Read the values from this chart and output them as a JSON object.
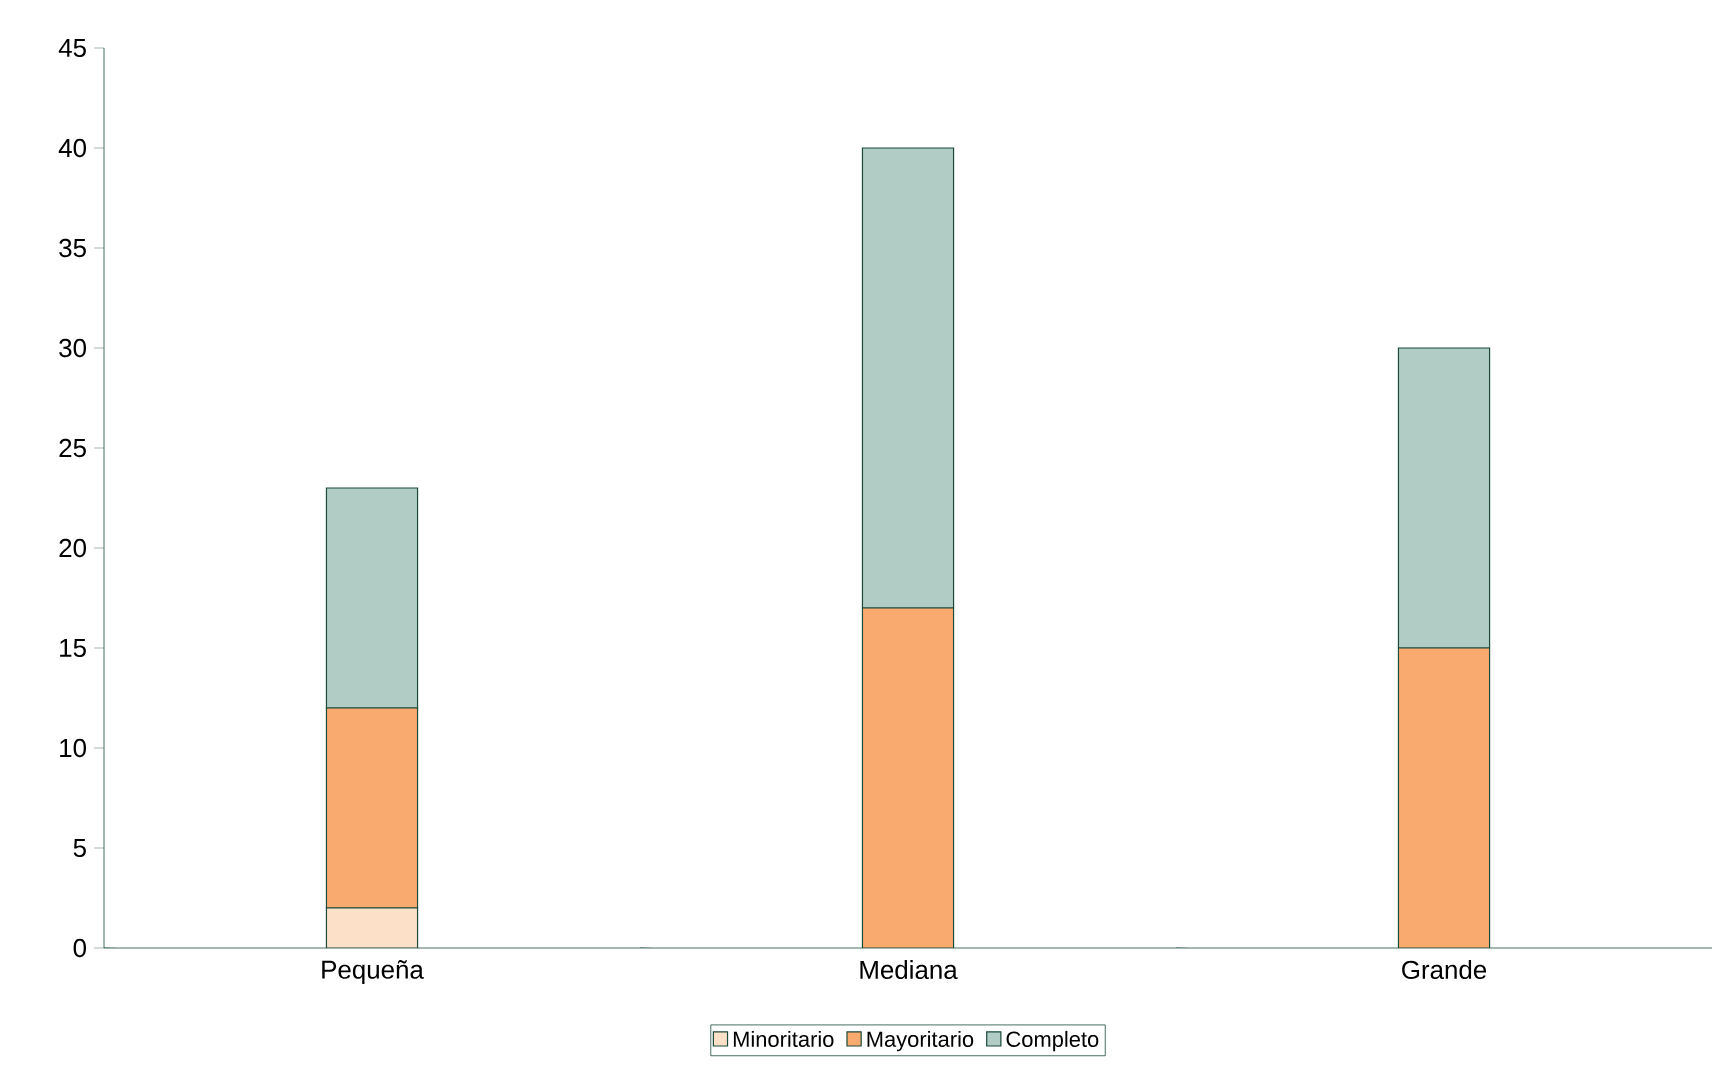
{
  "chart_data": {
    "type": "bar",
    "stacked": true,
    "categories": [
      "Pequeña",
      "Mediana",
      "Grande"
    ],
    "series": [
      {
        "name": "Minoritario",
        "color": "#fde0c8",
        "values": [
          2,
          0,
          0
        ]
      },
      {
        "name": "Mayoritario",
        "color": "#f9aa6e",
        "values": [
          10,
          17,
          15
        ]
      },
      {
        "name": "Completo",
        "color": "#b1cbc5",
        "values": [
          11,
          23,
          15
        ]
      }
    ],
    "ylim": [
      0,
      45
    ],
    "yticks": [
      0,
      5,
      10,
      15,
      20,
      25,
      30,
      35,
      40,
      45
    ],
    "grid": false,
    "legend": "bottom"
  }
}
